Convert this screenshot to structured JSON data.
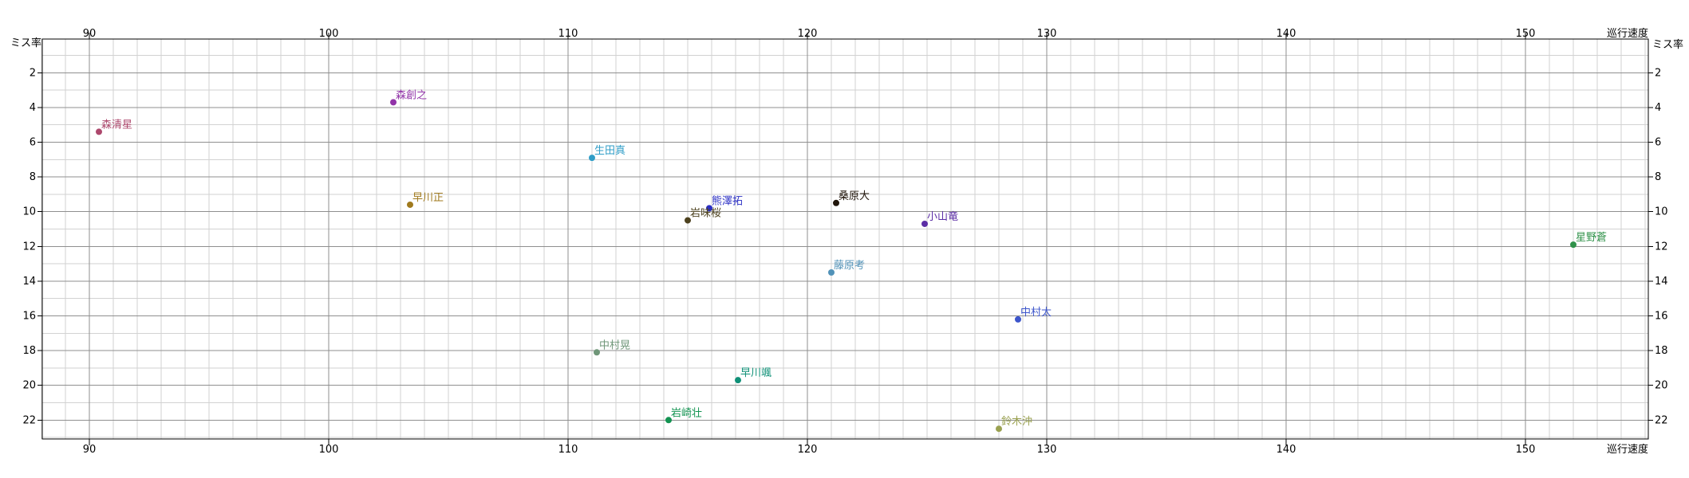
{
  "page": {
    "background": "#ffffff"
  },
  "colors": {
    "axis": "#000000",
    "grid_minor": "#d2d2d2",
    "grid_major": "#8f8f8f",
    "tick_text": "#000000",
    "background": "#ffffff"
  },
  "chart_data": {
    "type": "scatter",
    "title": "",
    "xlabel": "巡行速度",
    "ylabel": "ミス率",
    "grid": "on",
    "x_axis": {
      "label": "巡行速度",
      "ticks": [
        90,
        100,
        110,
        120,
        130,
        140,
        150
      ],
      "range": [
        88.0,
        155.1
      ],
      "minor_step": 1,
      "tick_label_sides": [
        "top",
        "bottom"
      ],
      "title_positions": [
        "top-right",
        "bottom-right"
      ]
    },
    "y_axis": {
      "label": "ミス率",
      "ticks": [
        2,
        4,
        6,
        8,
        10,
        12,
        14,
        16,
        18,
        20,
        22
      ],
      "range": [
        0,
        23.1
      ],
      "inverted": true,
      "minor_step": 1,
      "tick_label_sides": [
        "left",
        "right"
      ],
      "title_positions": [
        "top-left",
        "top-right"
      ]
    },
    "points": [
      {
        "name": "森清星",
        "x": 90.4,
        "y": 5.4,
        "color": "#ad486d"
      },
      {
        "name": "森創之",
        "x": 102.7,
        "y": 3.7,
        "color": "#9133a8"
      },
      {
        "name": "生田真",
        "x": 111.0,
        "y": 6.9,
        "color": "#2f9dc7"
      },
      {
        "name": "早川正",
        "x": 103.4,
        "y": 9.6,
        "color": "#a07a1e"
      },
      {
        "name": "熊澤拓",
        "x": 115.9,
        "y": 9.8,
        "color": "#2a2ec4"
      },
      {
        "name": "岩味桜",
        "x": 115.0,
        "y": 10.5,
        "color": "#4d421f"
      },
      {
        "name": "桑原大",
        "x": 121.2,
        "y": 9.5,
        "color": "#20150a"
      },
      {
        "name": "小山竜",
        "x": 124.9,
        "y": 10.7,
        "color": "#5b2da5"
      },
      {
        "name": "星野蒼",
        "x": 152.0,
        "y": 11.9,
        "color": "#30924a"
      },
      {
        "name": "藤原考",
        "x": 121.0,
        "y": 13.5,
        "color": "#5192b8"
      },
      {
        "name": "中村太",
        "x": 128.8,
        "y": 16.2,
        "color": "#3c55cb"
      },
      {
        "name": "中村晃",
        "x": 111.2,
        "y": 18.1,
        "color": "#6f9678"
      },
      {
        "name": "早川颯",
        "x": 117.1,
        "y": 19.7,
        "color": "#0f9077"
      },
      {
        "name": "岩崎壮",
        "x": 114.2,
        "y": 22.0,
        "color": "#129351"
      },
      {
        "name": "鈴木沖",
        "x": 128.0,
        "y": 22.5,
        "color": "#9aa150"
      }
    ]
  }
}
